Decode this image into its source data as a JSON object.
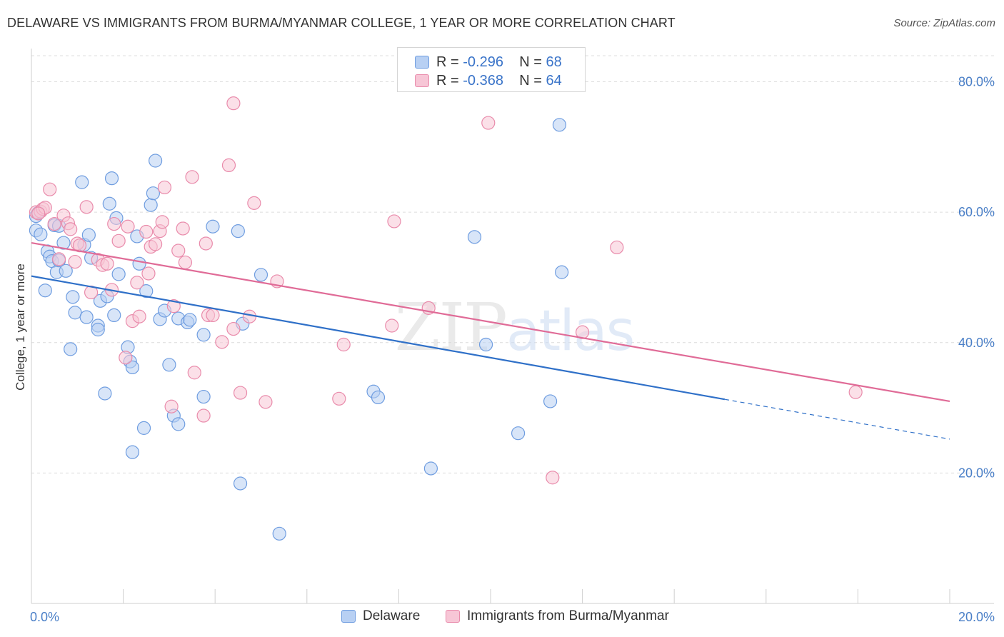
{
  "title": "DELAWARE VS IMMIGRANTS FROM BURMA/MYANMAR COLLEGE, 1 YEAR OR MORE CORRELATION CHART",
  "source": "Source: ZipAtlas.com",
  "watermark": "ZIPatlas",
  "colors": {
    "blue_fill": "#b8d0f3",
    "blue_stroke": "#6f9de0",
    "blue_line": "#2f70c8",
    "pink_fill": "#f7c6d6",
    "pink_stroke": "#e98bab",
    "pink_line": "#e06b97"
  },
  "legend": {
    "rows": [
      {
        "r_label": "R = ",
        "r_value": "-0.296",
        "n_label": "N = ",
        "n_value": "68"
      },
      {
        "r_label": "R = ",
        "r_value": "-0.368",
        "n_label": "N = ",
        "n_value": "64"
      }
    ]
  },
  "chart_data": {
    "type": "scatter",
    "title": "DELAWARE VS IMMIGRANTS FROM BURMA/MYANMAR COLLEGE, 1 YEAR OR MORE CORRELATION CHART",
    "xlabel": "",
    "ylabel": "College, 1 year or more",
    "xlim": [
      0,
      20
    ],
    "ylim": [
      0,
      84
    ],
    "x_tick_labels": [
      "0.0%",
      "20.0%"
    ],
    "y_ticks": [
      20,
      40,
      60,
      80
    ],
    "y_tick_labels": [
      "20.0%",
      "40.0%",
      "60.0%",
      "80.0%"
    ],
    "grid": "horizontal dashed",
    "legend_position": "bottom",
    "series": [
      {
        "name": "Delaware",
        "r": -0.296,
        "n": 68,
        "trend": {
          "x0": 0,
          "y0": 50.2,
          "x1": 15.1,
          "y1": 31.3,
          "dashed_to_x": 20,
          "dashed_to_y": 25.2
        },
        "points": [
          [
            0.1,
            59.4
          ],
          [
            0.1,
            57.2
          ],
          [
            0.2,
            56.6
          ],
          [
            0.3,
            48.0
          ],
          [
            0.35,
            54.0
          ],
          [
            0.4,
            53.2
          ],
          [
            0.45,
            52.5
          ],
          [
            0.5,
            58.0
          ],
          [
            0.55,
            50.8
          ],
          [
            0.6,
            52.6
          ],
          [
            0.7,
            55.3
          ],
          [
            0.75,
            51.0
          ],
          [
            0.85,
            39.0
          ],
          [
            0.9,
            47.0
          ],
          [
            0.95,
            44.6
          ],
          [
            1.1,
            64.6
          ],
          [
            1.15,
            55.0
          ],
          [
            1.2,
            43.9
          ],
          [
            1.25,
            56.5
          ],
          [
            1.3,
            53.0
          ],
          [
            1.45,
            42.6
          ],
          [
            1.45,
            42.0
          ],
          [
            1.5,
            46.4
          ],
          [
            1.6,
            32.2
          ],
          [
            1.65,
            47.1
          ],
          [
            1.7,
            61.3
          ],
          [
            1.75,
            65.2
          ],
          [
            1.8,
            44.2
          ],
          [
            1.85,
            59.1
          ],
          [
            1.9,
            50.5
          ],
          [
            2.1,
            39.3
          ],
          [
            2.15,
            37.1
          ],
          [
            2.2,
            36.2
          ],
          [
            2.2,
            23.2
          ],
          [
            2.3,
            56.3
          ],
          [
            2.35,
            52.1
          ],
          [
            2.45,
            26.9
          ],
          [
            2.5,
            47.9
          ],
          [
            2.6,
            61.1
          ],
          [
            2.65,
            62.9
          ],
          [
            2.7,
            67.9
          ],
          [
            2.8,
            43.6
          ],
          [
            2.9,
            44.9
          ],
          [
            3.0,
            36.6
          ],
          [
            3.1,
            28.8
          ],
          [
            3.2,
            27.5
          ],
          [
            3.2,
            43.7
          ],
          [
            3.4,
            43.1
          ],
          [
            3.45,
            43.5
          ],
          [
            3.75,
            41.2
          ],
          [
            3.75,
            31.7
          ],
          [
            3.95,
            57.8
          ],
          [
            4.5,
            57.1
          ],
          [
            4.55,
            18.4
          ],
          [
            4.6,
            42.9
          ],
          [
            5.0,
            50.4
          ],
          [
            5.4,
            10.7
          ],
          [
            7.45,
            32.5
          ],
          [
            7.55,
            31.6
          ],
          [
            8.7,
            20.7
          ],
          [
            9.65,
            56.2
          ],
          [
            9.9,
            39.7
          ],
          [
            10.6,
            26.1
          ],
          [
            11.3,
            31.0
          ],
          [
            11.5,
            73.4
          ],
          [
            11.55,
            50.8
          ],
          [
            0.15,
            59.9
          ],
          [
            0.6,
            57.9
          ]
        ]
      },
      {
        "name": "Immigrants from Burma/Myanmar",
        "r": -0.368,
        "n": 64,
        "trend": {
          "x0": 0,
          "y0": 55.3,
          "x1": 20,
          "y1": 31.0
        },
        "points": [
          [
            0.1,
            60.0
          ],
          [
            0.2,
            60.1
          ],
          [
            0.25,
            60.5
          ],
          [
            0.3,
            60.7
          ],
          [
            0.4,
            63.5
          ],
          [
            0.5,
            58.2
          ],
          [
            0.6,
            52.8
          ],
          [
            0.7,
            59.5
          ],
          [
            0.8,
            58.3
          ],
          [
            0.85,
            57.4
          ],
          [
            0.95,
            52.4
          ],
          [
            1.0,
            55.2
          ],
          [
            1.05,
            54.9
          ],
          [
            1.2,
            60.8
          ],
          [
            1.3,
            47.7
          ],
          [
            1.45,
            52.7
          ],
          [
            1.55,
            51.9
          ],
          [
            1.65,
            52.1
          ],
          [
            1.75,
            48.1
          ],
          [
            1.8,
            58.2
          ],
          [
            1.9,
            55.6
          ],
          [
            2.05,
            37.7
          ],
          [
            2.1,
            57.8
          ],
          [
            2.2,
            43.3
          ],
          [
            2.3,
            49.2
          ],
          [
            2.35,
            44.0
          ],
          [
            2.5,
            57.0
          ],
          [
            2.55,
            50.6
          ],
          [
            2.6,
            54.7
          ],
          [
            2.7,
            55.1
          ],
          [
            2.8,
            57.1
          ],
          [
            2.85,
            58.5
          ],
          [
            2.9,
            63.8
          ],
          [
            3.05,
            30.2
          ],
          [
            3.1,
            45.6
          ],
          [
            3.2,
            54.1
          ],
          [
            3.3,
            57.5
          ],
          [
            3.35,
            52.3
          ],
          [
            3.5,
            65.4
          ],
          [
            3.55,
            35.4
          ],
          [
            3.75,
            28.8
          ],
          [
            3.8,
            55.2
          ],
          [
            3.85,
            44.2
          ],
          [
            3.95,
            44.2
          ],
          [
            4.15,
            40.1
          ],
          [
            4.3,
            67.2
          ],
          [
            4.4,
            42.1
          ],
          [
            4.4,
            76.7
          ],
          [
            4.55,
            32.3
          ],
          [
            4.75,
            44.0
          ],
          [
            4.85,
            61.4
          ],
          [
            5.1,
            30.9
          ],
          [
            5.35,
            49.4
          ],
          [
            6.7,
            31.4
          ],
          [
            6.8,
            39.7
          ],
          [
            7.85,
            42.6
          ],
          [
            7.9,
            58.6
          ],
          [
            8.65,
            45.3
          ],
          [
            9.95,
            73.7
          ],
          [
            11.35,
            19.3
          ],
          [
            12.0,
            41.6
          ],
          [
            12.75,
            54.6
          ],
          [
            17.95,
            32.4
          ],
          [
            0.15,
            59.8
          ]
        ]
      }
    ]
  },
  "bottom_legend": {
    "items": [
      "Delaware",
      "Immigrants from Burma/Myanmar"
    ]
  }
}
